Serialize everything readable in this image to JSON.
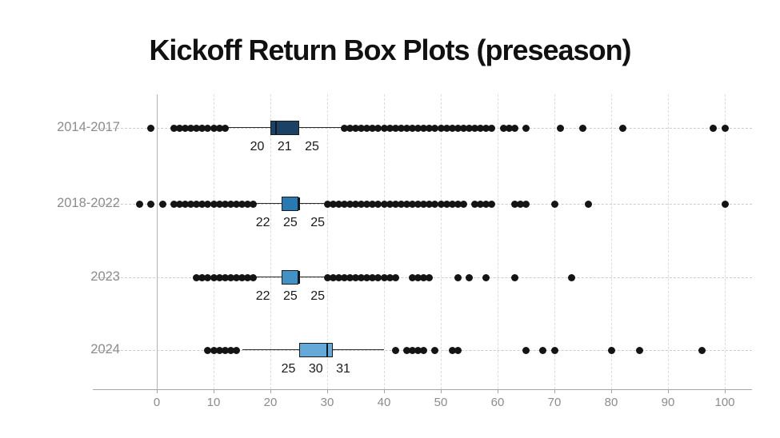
{
  "title": "Kickoff Return Box Plots (preseason)",
  "chart_data": {
    "type": "boxplot",
    "orientation": "horizontal",
    "title": "Kickoff Return Box Plots (preseason)",
    "xlabel": "",
    "ylabel": "",
    "xlim": [
      -6,
      103
    ],
    "x_ticks": [
      0,
      10,
      20,
      30,
      40,
      50,
      60,
      70,
      80,
      90,
      100
    ],
    "grid": "dashed-vertical-and-row-guides",
    "legend": "none",
    "colors": {
      "dot": "#141414",
      "box_border": "#1b1b1b",
      "axis_line": "#a6a6a6",
      "tick_label": "#8c8c8c",
      "row_label": "#8c8c8c",
      "grid_line": "#dcdcdc",
      "zero_line": "#b3b3b3",
      "stats_label": "#1a1a1a",
      "title": "#111111"
    },
    "rows": [
      {
        "label": "2014-2017",
        "q1": 20,
        "median": 21,
        "q3": 25,
        "whisker_low": 12.5,
        "whisker_high": 32.5,
        "stats_text": "20 21 25",
        "box_color": "#1b4265",
        "outliers": [
          -1,
          3,
          4,
          5,
          6,
          7,
          8,
          9,
          10,
          11,
          12,
          33,
          34,
          35,
          36,
          37,
          38,
          39,
          40,
          41,
          42,
          43,
          44,
          45,
          46,
          47,
          48,
          49,
          50,
          51,
          52,
          53,
          54,
          55,
          56,
          57,
          58,
          59,
          61,
          62,
          63,
          65,
          71,
          75,
          82,
          98,
          100
        ]
      },
      {
        "label": "2018-2022",
        "q1": 22,
        "median": 25,
        "q3": 25,
        "whisker_low": 17.5,
        "whisker_high": 29.5,
        "stats_text": "22 25 25",
        "box_color": "#2979b2",
        "outliers": [
          -3,
          -1,
          1,
          3,
          4,
          5,
          6,
          7,
          8,
          9,
          10,
          11,
          12,
          13,
          14,
          15,
          16,
          17,
          30,
          31,
          32,
          33,
          34,
          35,
          36,
          37,
          38,
          39,
          40,
          41,
          42,
          43,
          44,
          45,
          46,
          47,
          48,
          49,
          50,
          51,
          52,
          53,
          54,
          56,
          57,
          58,
          59,
          63,
          64,
          65,
          70,
          76,
          100
        ]
      },
      {
        "label": "2023",
        "q1": 22,
        "median": 25,
        "q3": 25,
        "whisker_low": 17.5,
        "whisker_high": 29.5,
        "stats_text": "22 25 25",
        "box_color": "#4292c6",
        "outliers": [
          7,
          8,
          9,
          10,
          11,
          12,
          13,
          14,
          15,
          16,
          17,
          30,
          31,
          32,
          33,
          34,
          35,
          36,
          37,
          38,
          39,
          40,
          41,
          42,
          45,
          46,
          47,
          48,
          53,
          55,
          58,
          63,
          73
        ]
      },
      {
        "label": "2024",
        "q1": 25,
        "median": 30,
        "q3": 31,
        "whisker_low": 15,
        "whisker_high": 40,
        "stats_text": "25 30 31",
        "box_color": "#64a9d8",
        "outliers": [
          9,
          10,
          11,
          12,
          13,
          14,
          42,
          44,
          45,
          46,
          47,
          49,
          52,
          53,
          65,
          68,
          70,
          80,
          85,
          96
        ]
      }
    ]
  }
}
